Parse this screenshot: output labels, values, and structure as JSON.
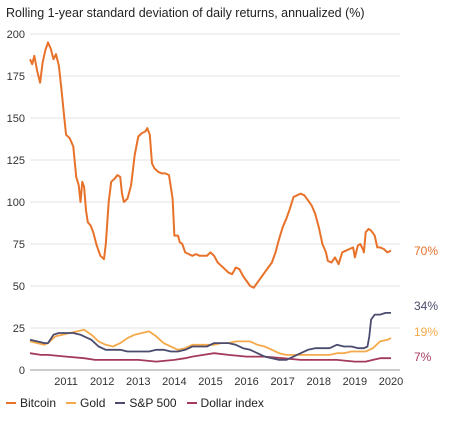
{
  "chart_data": {
    "type": "line",
    "title": "Rolling 1-year standard deviation of daily returns, annualized (%)",
    "xlabel": "",
    "ylabel": "",
    "xlim": [
      2010.5,
      2020.75
    ],
    "ylim": [
      0,
      200
    ],
    "y_ticks": [
      "0",
      "25",
      "50",
      "75",
      "100",
      "125",
      "150",
      "175",
      "200"
    ],
    "x_ticks": [
      "2011",
      "2012",
      "2013",
      "2014",
      "2015",
      "2016",
      "2017",
      "2018",
      "2019",
      "2020"
    ],
    "grid": "horizontal",
    "legend": "bottom",
    "series": [
      {
        "name": "Bitcoin",
        "color": "#E8722A",
        "end_label": "70%",
        "points": [
          [
            2010.5,
            185
          ],
          [
            2010.56,
            182
          ],
          [
            2010.62,
            187
          ],
          [
            2010.7,
            178
          ],
          [
            2010.78,
            171
          ],
          [
            2010.85,
            183
          ],
          [
            2010.92,
            190
          ],
          [
            2011.0,
            195
          ],
          [
            2011.08,
            191
          ],
          [
            2011.15,
            185
          ],
          [
            2011.22,
            188
          ],
          [
            2011.3,
            181
          ],
          [
            2011.38,
            165
          ],
          [
            2011.45,
            150
          ],
          [
            2011.5,
            140
          ],
          [
            2011.6,
            138
          ],
          [
            2011.7,
            133
          ],
          [
            2011.78,
            115
          ],
          [
            2011.85,
            110
          ],
          [
            2011.9,
            100
          ],
          [
            2011.95,
            112
          ],
          [
            2012.0,
            109
          ],
          [
            2012.05,
            95
          ],
          [
            2012.1,
            88
          ],
          [
            2012.18,
            86
          ],
          [
            2012.25,
            82
          ],
          [
            2012.35,
            74
          ],
          [
            2012.45,
            68
          ],
          [
            2012.55,
            66
          ],
          [
            2012.6,
            75
          ],
          [
            2012.68,
            100
          ],
          [
            2012.75,
            112
          ],
          [
            2012.85,
            114
          ],
          [
            2012.92,
            116
          ],
          [
            2013.0,
            115
          ],
          [
            2013.05,
            105
          ],
          [
            2013.1,
            100
          ],
          [
            2013.2,
            102
          ],
          [
            2013.3,
            110
          ],
          [
            2013.4,
            128
          ],
          [
            2013.5,
            139
          ],
          [
            2013.6,
            141
          ],
          [
            2013.7,
            142
          ],
          [
            2013.75,
            144
          ],
          [
            2013.82,
            140
          ],
          [
            2013.88,
            123
          ],
          [
            2013.95,
            120
          ],
          [
            2014.05,
            118
          ],
          [
            2014.15,
            117
          ],
          [
            2014.25,
            117
          ],
          [
            2014.35,
            116
          ],
          [
            2014.45,
            102
          ],
          [
            2014.5,
            80
          ],
          [
            2014.6,
            80
          ],
          [
            2014.65,
            76
          ],
          [
            2014.72,
            75
          ],
          [
            2014.8,
            70
          ],
          [
            2014.9,
            69
          ],
          [
            2015.0,
            68
          ],
          [
            2015.1,
            69
          ],
          [
            2015.2,
            68
          ],
          [
            2015.3,
            68
          ],
          [
            2015.4,
            68
          ],
          [
            2015.5,
            70
          ],
          [
            2015.6,
            68
          ],
          [
            2015.7,
            64
          ],
          [
            2015.8,
            62
          ],
          [
            2015.9,
            60
          ],
          [
            2016.0,
            58
          ],
          [
            2016.1,
            57
          ],
          [
            2016.2,
            61
          ],
          [
            2016.3,
            60
          ],
          [
            2016.4,
            56
          ],
          [
            2016.5,
            53
          ],
          [
            2016.6,
            50
          ],
          [
            2016.7,
            49
          ],
          [
            2016.8,
            52
          ],
          [
            2016.9,
            55
          ],
          [
            2017.0,
            58
          ],
          [
            2017.1,
            61
          ],
          [
            2017.2,
            64
          ],
          [
            2017.3,
            70
          ],
          [
            2017.4,
            78
          ],
          [
            2017.5,
            85
          ],
          [
            2017.6,
            90
          ],
          [
            2017.7,
            96
          ],
          [
            2017.8,
            103
          ],
          [
            2017.9,
            104
          ],
          [
            2018.0,
            105
          ],
          [
            2018.1,
            104
          ],
          [
            2018.2,
            101
          ],
          [
            2018.3,
            98
          ],
          [
            2018.4,
            93
          ],
          [
            2018.5,
            85
          ],
          [
            2018.6,
            75
          ],
          [
            2018.7,
            70
          ],
          [
            2018.75,
            65
          ],
          [
            2018.85,
            64
          ],
          [
            2018.95,
            67
          ],
          [
            2019.05,
            63
          ],
          [
            2019.15,
            70
          ],
          [
            2019.25,
            71
          ],
          [
            2019.35,
            72
          ],
          [
            2019.45,
            73
          ],
          [
            2019.5,
            67
          ],
          [
            2019.58,
            74
          ],
          [
            2019.65,
            75
          ],
          [
            2019.72,
            72
          ],
          [
            2019.75,
            70
          ],
          [
            2019.8,
            82
          ],
          [
            2019.88,
            84
          ],
          [
            2019.95,
            83
          ],
          [
            2020.05,
            80
          ],
          [
            2020.12,
            73
          ],
          [
            2020.2,
            73
          ],
          [
            2020.3,
            72
          ],
          [
            2020.4,
            70
          ],
          [
            2020.5,
            71
          ]
        ]
      },
      {
        "name": "Gold",
        "color": "#F5A94A",
        "end_label": "19%",
        "points": [
          [
            2010.5,
            17
          ],
          [
            2010.7,
            16
          ],
          [
            2010.9,
            15
          ],
          [
            2011.0,
            16
          ],
          [
            2011.2,
            20
          ],
          [
            2011.4,
            21
          ],
          [
            2011.6,
            22
          ],
          [
            2011.8,
            23
          ],
          [
            2012.0,
            24
          ],
          [
            2012.2,
            21
          ],
          [
            2012.4,
            17
          ],
          [
            2012.6,
            15
          ],
          [
            2012.8,
            14
          ],
          [
            2013.0,
            16
          ],
          [
            2013.2,
            19
          ],
          [
            2013.4,
            21
          ],
          [
            2013.6,
            22
          ],
          [
            2013.8,
            23
          ],
          [
            2014.0,
            20
          ],
          [
            2014.2,
            16
          ],
          [
            2014.4,
            14
          ],
          [
            2014.6,
            12
          ],
          [
            2014.8,
            13
          ],
          [
            2015.0,
            15
          ],
          [
            2015.2,
            15
          ],
          [
            2015.4,
            15
          ],
          [
            2015.6,
            15
          ],
          [
            2015.8,
            16
          ],
          [
            2016.0,
            16
          ],
          [
            2016.2,
            17
          ],
          [
            2016.4,
            17
          ],
          [
            2016.6,
            17
          ],
          [
            2016.8,
            15
          ],
          [
            2017.0,
            14
          ],
          [
            2017.2,
            12
          ],
          [
            2017.4,
            10
          ],
          [
            2017.6,
            9
          ],
          [
            2017.8,
            9
          ],
          [
            2018.0,
            9
          ],
          [
            2018.2,
            9
          ],
          [
            2018.4,
            9
          ],
          [
            2018.6,
            9
          ],
          [
            2018.8,
            9
          ],
          [
            2019.0,
            10
          ],
          [
            2019.2,
            10
          ],
          [
            2019.4,
            11
          ],
          [
            2019.6,
            11
          ],
          [
            2019.8,
            11
          ],
          [
            2020.0,
            13
          ],
          [
            2020.2,
            17
          ],
          [
            2020.4,
            18
          ],
          [
            2020.5,
            19
          ]
        ]
      },
      {
        "name": "S&P 500",
        "color": "#4B4B6E",
        "end_label": "34%",
        "points": [
          [
            2010.5,
            18
          ],
          [
            2010.7,
            17
          ],
          [
            2010.9,
            16
          ],
          [
            2011.0,
            16
          ],
          [
            2011.15,
            21
          ],
          [
            2011.3,
            22
          ],
          [
            2011.5,
            22
          ],
          [
            2011.7,
            22
          ],
          [
            2011.9,
            21
          ],
          [
            2012.0,
            20
          ],
          [
            2012.2,
            18
          ],
          [
            2012.4,
            14
          ],
          [
            2012.6,
            12
          ],
          [
            2012.8,
            12
          ],
          [
            2013.0,
            12
          ],
          [
            2013.2,
            11
          ],
          [
            2013.4,
            11
          ],
          [
            2013.6,
            11
          ],
          [
            2013.8,
            11
          ],
          [
            2014.0,
            12
          ],
          [
            2014.2,
            12
          ],
          [
            2014.4,
            11
          ],
          [
            2014.6,
            11
          ],
          [
            2014.8,
            12
          ],
          [
            2015.0,
            14
          ],
          [
            2015.2,
            14
          ],
          [
            2015.4,
            14
          ],
          [
            2015.6,
            16
          ],
          [
            2015.8,
            16
          ],
          [
            2016.0,
            16
          ],
          [
            2016.2,
            15
          ],
          [
            2016.4,
            13
          ],
          [
            2016.6,
            12
          ],
          [
            2016.8,
            10
          ],
          [
            2017.0,
            8
          ],
          [
            2017.2,
            7
          ],
          [
            2017.4,
            6
          ],
          [
            2017.6,
            6
          ],
          [
            2017.8,
            8
          ],
          [
            2018.0,
            10
          ],
          [
            2018.2,
            12
          ],
          [
            2018.4,
            13
          ],
          [
            2018.6,
            13
          ],
          [
            2018.8,
            13
          ],
          [
            2019.0,
            15
          ],
          [
            2019.2,
            14
          ],
          [
            2019.4,
            14
          ],
          [
            2019.6,
            13
          ],
          [
            2019.75,
            13
          ],
          [
            2019.85,
            14
          ],
          [
            2019.9,
            20
          ],
          [
            2019.95,
            30
          ],
          [
            2020.05,
            33
          ],
          [
            2020.2,
            33
          ],
          [
            2020.35,
            34
          ],
          [
            2020.5,
            34
          ]
        ]
      },
      {
        "name": "Dollar index",
        "color": "#A33A5B",
        "end_label": "7%",
        "points": [
          [
            2010.5,
            10
          ],
          [
            2010.8,
            9
          ],
          [
            2011.0,
            9
          ],
          [
            2011.5,
            8
          ],
          [
            2012.0,
            7
          ],
          [
            2012.3,
            6
          ],
          [
            2012.6,
            6
          ],
          [
            2013.0,
            6
          ],
          [
            2013.5,
            6
          ],
          [
            2014.0,
            5
          ],
          [
            2014.5,
            6
          ],
          [
            2014.8,
            7
          ],
          [
            2015.0,
            8
          ],
          [
            2015.3,
            9
          ],
          [
            2015.6,
            10
          ],
          [
            2016.0,
            9
          ],
          [
            2016.5,
            8
          ],
          [
            2017.0,
            8
          ],
          [
            2017.5,
            7
          ],
          [
            2018.0,
            6
          ],
          [
            2018.5,
            6
          ],
          [
            2019.0,
            6
          ],
          [
            2019.5,
            5
          ],
          [
            2019.8,
            5
          ],
          [
            2020.0,
            6
          ],
          [
            2020.2,
            7
          ],
          [
            2020.5,
            7
          ]
        ]
      }
    ]
  }
}
